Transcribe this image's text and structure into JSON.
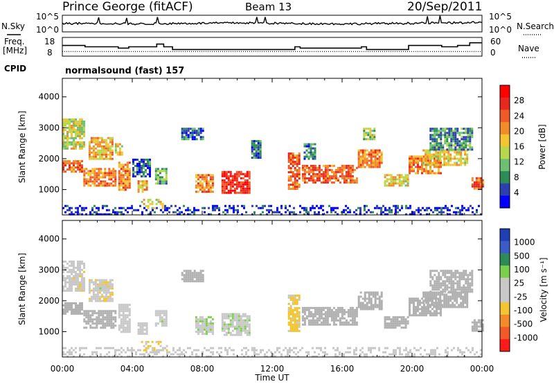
{
  "header": {
    "station": "Prince George (fitACF)",
    "beam": "Beam 13",
    "date": "20/Sep/2011"
  },
  "noise_panel": {
    "left_label": "N.Sky",
    "right_label": "N.Search",
    "ticks": [
      "10^5",
      "10^0"
    ],
    "right_ticks": [
      "10^5",
      "10^0"
    ]
  },
  "freq_panel": {
    "left_label_line1": "Freq.",
    "left_label_line2": "[MHz]",
    "left_ticks": [
      "18",
      "8"
    ],
    "right_label": "Nave",
    "right_ticks": [
      "60",
      "0"
    ]
  },
  "cpid": {
    "label": "CPID",
    "program": "normalsound (fast) 157"
  },
  "colors": {
    "power_scale": [
      "#0000ff",
      "#2b3fb0",
      "#2e8b57",
      "#6fbf73",
      "#b6d84a",
      "#f2c531",
      "#f28c28",
      "#f05a28",
      "#e8281e",
      "#ff0000"
    ],
    "velocity_scale": [
      "#1f3fb4",
      "#3a5bc8",
      "#2e8b57",
      "#7cd04c",
      "#c8c8c8",
      "#c8c8c8",
      "#f2c531",
      "#f28c28",
      "#f05a28",
      "#ff1a1a"
    ],
    "ground_scatter": "#b0b0b0"
  },
  "chart_data": [
    {
      "type": "heatmap",
      "title": "",
      "ylabel": "Slant Range [km]",
      "yticks": [
        "4000",
        "3000",
        "2000",
        "1000"
      ],
      "ylim": [
        180,
        4600
      ],
      "xlim": [
        0,
        24
      ],
      "colorbar": {
        "label": "Power [dB]",
        "ticks": [
          "28",
          "24",
          "20",
          "16",
          "12",
          "8",
          "4"
        ],
        "range": [
          0,
          30
        ]
      },
      "regions": [
        {
          "t0": 0.0,
          "t1": 1.1,
          "r0": 1550,
          "r1": 1950,
          "value": 22
        },
        {
          "t0": 0.0,
          "t1": 1.3,
          "r0": 2300,
          "r1": 3300,
          "value": 14
        },
        {
          "t0": 1.2,
          "t1": 3.0,
          "r0": 1150,
          "r1": 1700,
          "value": 20
        },
        {
          "t0": 1.5,
          "t1": 2.9,
          "r0": 2000,
          "r1": 2700,
          "value": 18
        },
        {
          "t0": 3.0,
          "t1": 3.4,
          "r0": 2100,
          "r1": 2500,
          "value": 16
        },
        {
          "t0": 3.2,
          "t1": 3.9,
          "r0": 1000,
          "r1": 1900,
          "value": 20
        },
        {
          "t0": 4.0,
          "t1": 5.0,
          "r0": 1400,
          "r1": 2000,
          "value": 6
        },
        {
          "t0": 4.3,
          "t1": 4.8,
          "r0": 900,
          "r1": 1300,
          "value": 18
        },
        {
          "t0": 4.5,
          "t1": 6.0,
          "r0": 400,
          "r1": 700,
          "value": 14
        },
        {
          "t0": 5.3,
          "t1": 6.0,
          "r0": 1200,
          "r1": 1700,
          "value": 10
        },
        {
          "t0": 6.8,
          "t1": 8.0,
          "r0": 2600,
          "r1": 3000,
          "value": 6
        },
        {
          "t0": 7.6,
          "t1": 8.6,
          "r0": 900,
          "r1": 1500,
          "value": 20
        },
        {
          "t0": 9.1,
          "t1": 10.7,
          "r0": 900,
          "r1": 1600,
          "value": 26
        },
        {
          "t0": 10.8,
          "t1": 11.3,
          "r0": 2000,
          "r1": 2600,
          "value": 5
        },
        {
          "t0": 12.9,
          "t1": 13.6,
          "r0": 1000,
          "r1": 2200,
          "value": 22
        },
        {
          "t0": 13.7,
          "t1": 16.8,
          "r0": 1200,
          "r1": 1800,
          "value": 22
        },
        {
          "t0": 13.8,
          "t1": 14.4,
          "r0": 2000,
          "r1": 2500,
          "value": 6
        },
        {
          "t0": 16.9,
          "t1": 18.3,
          "r0": 1700,
          "r1": 2300,
          "value": 20
        },
        {
          "t0": 17.2,
          "t1": 17.9,
          "r0": 2600,
          "r1": 3000,
          "value": 12
        },
        {
          "t0": 18.4,
          "t1": 19.8,
          "r0": 1100,
          "r1": 1500,
          "value": 16
        },
        {
          "t0": 19.8,
          "t1": 21.7,
          "r0": 1500,
          "r1": 2100,
          "value": 20
        },
        {
          "t0": 20.6,
          "t1": 23.2,
          "r0": 1800,
          "r1": 2300,
          "value": 16
        },
        {
          "t0": 21.0,
          "t1": 23.4,
          "r0": 2300,
          "r1": 3000,
          "value": 8
        },
        {
          "t0": 23.4,
          "t1": 24.0,
          "r0": 1000,
          "r1": 1400,
          "value": 22
        },
        {
          "t0": 0.0,
          "t1": 24.0,
          "r0": 200,
          "r1": 500,
          "value": 3
        }
      ]
    },
    {
      "type": "heatmap",
      "title": "",
      "ylabel": "Slant Range [km]",
      "yticks": [
        "4000",
        "3000",
        "2000",
        "1000"
      ],
      "ylim": [
        180,
        4600
      ],
      "xlim": [
        0,
        24
      ],
      "xlabel": "Time UT",
      "xticks": [
        "00:00",
        "04:00",
        "08:00",
        "12:00",
        "16:00",
        "20:00",
        "00:00"
      ],
      "colorbar": {
        "label": "Velocity [m s⁻¹]",
        "ticks": [
          "1000",
          "500",
          "100",
          "25",
          "-25",
          "-100",
          "-500",
          "-1000"
        ],
        "range": [
          -1200,
          1200
        ]
      },
      "regions": [
        {
          "t0": 0.0,
          "t1": 1.1,
          "r0": 1550,
          "r1": 1950,
          "value": 0,
          "ground": true
        },
        {
          "t0": 0.0,
          "t1": 1.3,
          "r0": 2300,
          "r1": 3300,
          "value": -150
        },
        {
          "t0": 1.2,
          "t1": 3.0,
          "r0": 1150,
          "r1": 1700,
          "value": 0,
          "ground": true
        },
        {
          "t0": 1.5,
          "t1": 2.9,
          "r0": 2000,
          "r1": 2700,
          "value": -200
        },
        {
          "t0": 2.0,
          "t1": 2.7,
          "r0": 2300,
          "r1": 2500,
          "value": 150
        },
        {
          "t0": 3.2,
          "t1": 3.9,
          "r0": 1000,
          "r1": 1900,
          "value": 120
        },
        {
          "t0": 4.3,
          "t1": 4.8,
          "r0": 900,
          "r1": 1300,
          "value": 100
        },
        {
          "t0": 4.5,
          "t1": 6.0,
          "r0": 400,
          "r1": 700,
          "value": -250
        },
        {
          "t0": 5.3,
          "t1": 6.0,
          "r0": 1200,
          "r1": 1700,
          "value": 150
        },
        {
          "t0": 6.8,
          "t1": 8.0,
          "r0": 2600,
          "r1": 3000,
          "value": 0,
          "ground": true
        },
        {
          "t0": 7.6,
          "t1": 8.6,
          "r0": 900,
          "r1": 1500,
          "value": 200
        },
        {
          "t0": 9.1,
          "t1": 10.7,
          "r0": 900,
          "r1": 1600,
          "value": 180
        },
        {
          "t0": 12.9,
          "t1": 13.6,
          "r0": 1000,
          "r1": 2200,
          "value": -300
        },
        {
          "t0": 13.7,
          "t1": 16.8,
          "r0": 1200,
          "r1": 1800,
          "value": 0,
          "ground": true
        },
        {
          "t0": 16.9,
          "t1": 18.3,
          "r0": 1700,
          "r1": 2300,
          "value": 0,
          "ground": true
        },
        {
          "t0": 18.4,
          "t1": 19.8,
          "r0": 1100,
          "r1": 1500,
          "value": 0,
          "ground": true
        },
        {
          "t0": 19.8,
          "t1": 21.7,
          "r0": 1500,
          "r1": 2100,
          "value": 0,
          "ground": true
        },
        {
          "t0": 20.6,
          "t1": 23.2,
          "r0": 1800,
          "r1": 2300,
          "value": 0,
          "ground": true
        },
        {
          "t0": 21.0,
          "t1": 23.4,
          "r0": 2300,
          "r1": 3000,
          "value": 0,
          "ground": true
        },
        {
          "t0": 23.4,
          "t1": 24.0,
          "r0": 1000,
          "r1": 1400,
          "value": 0,
          "ground": true
        },
        {
          "t0": 0.0,
          "t1": 24.0,
          "r0": 200,
          "r1": 500,
          "value": 60
        }
      ]
    }
  ],
  "noise_series": {
    "type": "line",
    "x": [
      0,
      2,
      4,
      6,
      8,
      10,
      12,
      14,
      16,
      18,
      20,
      22,
      24
    ],
    "y": [
      2.5,
      2.6,
      2.4,
      2.5,
      2.6,
      2.7,
      2.6,
      2.5,
      2.4,
      2.5,
      2.6,
      2.7,
      2.8
    ]
  },
  "freq_series": {
    "type": "line",
    "x": [
      0,
      1.3,
      1.3,
      3.2,
      3.2,
      3.8,
      3.8,
      5.4,
      5.4,
      5.8,
      5.8,
      6.3,
      6.3,
      13.3,
      13.3,
      13.6,
      13.6,
      17.1,
      17.1,
      17.4,
      17.4,
      19.8,
      19.8,
      21.7,
      21.7,
      22.6,
      22.6,
      23.3,
      23.3,
      24
    ],
    "y": [
      14,
      14,
      13,
      13,
      12,
      12,
      13,
      13,
      15,
      15,
      13,
      13,
      11,
      11,
      13,
      13,
      12,
      12,
      13,
      13,
      11,
      11,
      14,
      14,
      13,
      13,
      14,
      14,
      16,
      16
    ]
  },
  "nave_series": {
    "type": "line",
    "x": [
      0,
      24
    ],
    "y": [
      15,
      15
    ]
  }
}
